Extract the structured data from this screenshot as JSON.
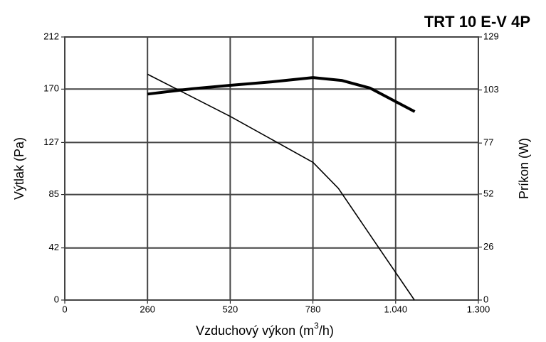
{
  "chart_data": {
    "type": "line",
    "title": "TRT 10 E-V 4P",
    "x_label": {
      "text": "Vzduchový výkon (m",
      "sup": "3",
      "tail": "/h)"
    },
    "y_label": "Výtlak (Pa)",
    "y2_label": "Príkon (W)",
    "xlim": [
      0,
      1300
    ],
    "xticks": [
      0,
      260,
      520,
      780,
      {
        "value": 1040,
        "label": "1.040"
      },
      {
        "value": 1300,
        "label": "1.300"
      }
    ],
    "ylim": [
      0,
      212
    ],
    "yticks": [
      0,
      42,
      85,
      127,
      170,
      212
    ],
    "y2lim": [
      0,
      129
    ],
    "y2ticks": [
      0,
      26,
      52,
      77,
      103,
      129
    ],
    "grid": true,
    "series": [
      {
        "color": "#000000",
        "x": [
          260,
          520,
          780,
          860,
          982,
          1099
        ],
        "values": [
          182,
          148,
          111,
          90,
          44,
          0
        ]
      },
      {
        "color": "#000000",
        "axis": "y2",
        "x": [
          260,
          400,
          520,
          650,
          780,
          870,
          960,
          1100
        ],
        "values": [
          101,
          103.6,
          105.3,
          107,
          109.1,
          107.7,
          103.9,
          92.4
        ]
      }
    ]
  }
}
